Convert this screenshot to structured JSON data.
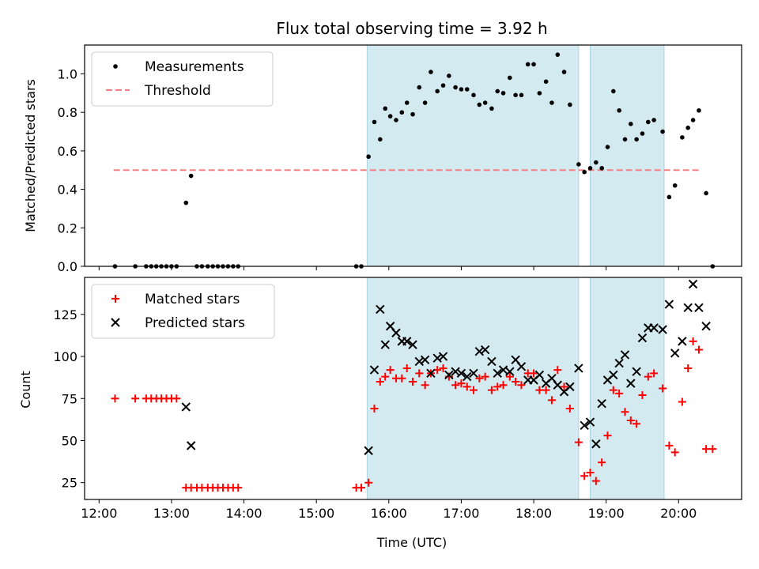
{
  "chart_data": [
    {
      "type": "scatter",
      "title": "Flux total observing time = 3.92 h",
      "xlabel": "",
      "ylabel": "Matched/Predicted stars",
      "x_unit": "hours UTC",
      "xlim": [
        11.8,
        20.87
      ],
      "ylim": [
        0,
        1.15
      ],
      "x_tick_labels": [
        "12:00",
        "13:00",
        "14:00",
        "15:00",
        "16:00",
        "17:00",
        "18:00",
        "19:00",
        "20:00"
      ],
      "y_ticks": [
        0.0,
        0.2,
        0.4,
        0.6,
        0.8,
        1.0
      ],
      "y_tick_labels": [
        "0.0",
        "0.2",
        "0.4",
        "0.6",
        "0.8",
        "1.0"
      ],
      "shaded_intervals": [
        [
          15.7,
          18.62
        ],
        [
          18.78,
          19.8
        ]
      ],
      "shade_color": "#d3eaf0",
      "threshold": {
        "name": "Threshold",
        "value": 0.5,
        "x_range": [
          12.2,
          20.3
        ],
        "color": "#f28080"
      },
      "legend_position": "top-left",
      "series": [
        {
          "name": "Measurements",
          "color": "#000000",
          "points": [
            [
              12.22,
              0.0
            ],
            [
              12.5,
              0.0
            ],
            [
              12.65,
              0.0
            ],
            [
              12.72,
              0.0
            ],
            [
              12.79,
              0.0
            ],
            [
              12.86,
              0.0
            ],
            [
              12.93,
              0.0
            ],
            [
              13.0,
              0.0
            ],
            [
              13.07,
              0.0
            ],
            [
              13.2,
              0.33
            ],
            [
              13.27,
              0.47
            ],
            [
              13.35,
              0.0
            ],
            [
              13.42,
              0.0
            ],
            [
              13.5,
              0.0
            ],
            [
              13.57,
              0.0
            ],
            [
              13.64,
              0.0
            ],
            [
              13.71,
              0.0
            ],
            [
              13.78,
              0.0
            ],
            [
              13.85,
              0.0
            ],
            [
              13.92,
              0.0
            ],
            [
              15.55,
              0.0
            ],
            [
              15.62,
              0.0
            ],
            [
              15.72,
              0.57
            ],
            [
              15.8,
              0.75
            ],
            [
              15.88,
              0.66
            ],
            [
              15.95,
              0.82
            ],
            [
              16.02,
              0.78
            ],
            [
              16.1,
              0.76
            ],
            [
              16.18,
              0.8
            ],
            [
              16.25,
              0.85
            ],
            [
              16.33,
              0.79
            ],
            [
              16.42,
              0.93
            ],
            [
              16.5,
              0.85
            ],
            [
              16.58,
              1.01
            ],
            [
              16.67,
              0.91
            ],
            [
              16.75,
              0.94
            ],
            [
              16.83,
              0.99
            ],
            [
              16.92,
              0.93
            ],
            [
              17.0,
              0.92
            ],
            [
              17.08,
              0.92
            ],
            [
              17.17,
              0.89
            ],
            [
              17.25,
              0.84
            ],
            [
              17.33,
              0.85
            ],
            [
              17.42,
              0.82
            ],
            [
              17.5,
              0.91
            ],
            [
              17.58,
              0.9
            ],
            [
              17.67,
              0.98
            ],
            [
              17.75,
              0.89
            ],
            [
              17.83,
              0.89
            ],
            [
              17.92,
              1.05
            ],
            [
              18.0,
              1.05
            ],
            [
              18.08,
              0.9
            ],
            [
              18.17,
              0.96
            ],
            [
              18.25,
              0.85
            ],
            [
              18.33,
              1.1
            ],
            [
              18.42,
              1.01
            ],
            [
              18.5,
              0.84
            ],
            [
              18.62,
              0.53
            ],
            [
              18.7,
              0.49
            ],
            [
              18.78,
              0.51
            ],
            [
              18.86,
              0.54
            ],
            [
              18.94,
              0.51
            ],
            [
              19.02,
              0.62
            ],
            [
              19.1,
              0.91
            ],
            [
              19.18,
              0.81
            ],
            [
              19.26,
              0.66
            ],
            [
              19.34,
              0.74
            ],
            [
              19.42,
              0.66
            ],
            [
              19.5,
              0.69
            ],
            [
              19.58,
              0.75
            ],
            [
              19.66,
              0.76
            ],
            [
              19.78,
              0.7
            ],
            [
              19.87,
              0.36
            ],
            [
              19.95,
              0.42
            ],
            [
              20.05,
              0.67
            ],
            [
              20.13,
              0.72
            ],
            [
              20.2,
              0.76
            ],
            [
              20.28,
              0.81
            ],
            [
              20.38,
              0.38
            ],
            [
              20.47,
              0.0
            ]
          ]
        }
      ]
    },
    {
      "type": "scatter",
      "title": "",
      "xlabel": "Time (UTC)",
      "ylabel": "Count",
      "x_unit": "hours UTC",
      "xlim": [
        11.8,
        20.87
      ],
      "ylim": [
        15,
        147
      ],
      "x_ticks": [
        12,
        13,
        14,
        15,
        16,
        17,
        18,
        19,
        20
      ],
      "x_tick_labels": [
        "12:00",
        "13:00",
        "14:00",
        "15:00",
        "16:00",
        "17:00",
        "18:00",
        "19:00",
        "20:00"
      ],
      "y_ticks": [
        25,
        50,
        75,
        100,
        125
      ],
      "y_tick_labels": [
        "25",
        "50",
        "75",
        "100",
        "125"
      ],
      "shaded_intervals": [
        [
          15.7,
          18.62
        ],
        [
          18.78,
          19.8
        ]
      ],
      "shade_color": "#d3eaf0",
      "legend_position": "top-left",
      "series": [
        {
          "name": "Matched stars",
          "color": "#ff0000",
          "marker": "plus",
          "points": [
            [
              12.22,
              75
            ],
            [
              12.5,
              75
            ],
            [
              12.65,
              75
            ],
            [
              12.72,
              75
            ],
            [
              12.79,
              75
            ],
            [
              12.86,
              75
            ],
            [
              12.93,
              75
            ],
            [
              13.0,
              75
            ],
            [
              13.07,
              75
            ],
            [
              13.2,
              22
            ],
            [
              13.27,
              22
            ],
            [
              13.35,
              22
            ],
            [
              13.42,
              22
            ],
            [
              13.5,
              22
            ],
            [
              13.57,
              22
            ],
            [
              13.64,
              22
            ],
            [
              13.71,
              22
            ],
            [
              13.78,
              22
            ],
            [
              13.85,
              22
            ],
            [
              13.92,
              22
            ],
            [
              15.55,
              22
            ],
            [
              15.62,
              22
            ],
            [
              15.72,
              25
            ],
            [
              15.8,
              69
            ],
            [
              15.88,
              85
            ],
            [
              15.95,
              88
            ],
            [
              16.02,
              92
            ],
            [
              16.1,
              87
            ],
            [
              16.18,
              87
            ],
            [
              16.25,
              93
            ],
            [
              16.33,
              85
            ],
            [
              16.42,
              90
            ],
            [
              16.5,
              83
            ],
            [
              16.58,
              90
            ],
            [
              16.67,
              92
            ],
            [
              16.75,
              93
            ],
            [
              16.83,
              88
            ],
            [
              16.92,
              83
            ],
            [
              17.0,
              84
            ],
            [
              17.08,
              82
            ],
            [
              17.17,
              80
            ],
            [
              17.25,
              87
            ],
            [
              17.33,
              88
            ],
            [
              17.42,
              80
            ],
            [
              17.5,
              82
            ],
            [
              17.58,
              83
            ],
            [
              17.67,
              88
            ],
            [
              17.75,
              85
            ],
            [
              17.83,
              83
            ],
            [
              17.92,
              90
            ],
            [
              18.0,
              90
            ],
            [
              18.08,
              80
            ],
            [
              18.17,
              80
            ],
            [
              18.25,
              74
            ],
            [
              18.33,
              92
            ],
            [
              18.42,
              82
            ],
            [
              18.5,
              69
            ],
            [
              18.62,
              49
            ],
            [
              18.7,
              29
            ],
            [
              18.78,
              31
            ],
            [
              18.86,
              26
            ],
            [
              18.94,
              37
            ],
            [
              19.02,
              53
            ],
            [
              19.1,
              80
            ],
            [
              19.18,
              78
            ],
            [
              19.26,
              67
            ],
            [
              19.34,
              62
            ],
            [
              19.42,
              60
            ],
            [
              19.5,
              77
            ],
            [
              19.58,
              88
            ],
            [
              19.66,
              90
            ],
            [
              19.78,
              81
            ],
            [
              19.87,
              47
            ],
            [
              19.95,
              43
            ],
            [
              20.05,
              73
            ],
            [
              20.13,
              93
            ],
            [
              20.2,
              109
            ],
            [
              20.28,
              104
            ],
            [
              20.38,
              45
            ],
            [
              20.47,
              45
            ]
          ]
        },
        {
          "name": "Predicted stars",
          "color": "#000000",
          "marker": "x",
          "points": [
            [
              13.2,
              70
            ],
            [
              13.27,
              47
            ],
            [
              15.72,
              44
            ],
            [
              15.8,
              92
            ],
            [
              15.88,
              128
            ],
            [
              15.95,
              107
            ],
            [
              16.02,
              118
            ],
            [
              16.1,
              114
            ],
            [
              16.18,
              109
            ],
            [
              16.25,
              109
            ],
            [
              16.33,
              107
            ],
            [
              16.42,
              97
            ],
            [
              16.5,
              98
            ],
            [
              16.58,
              90
            ],
            [
              16.67,
              99
            ],
            [
              16.75,
              100
            ],
            [
              16.83,
              89
            ],
            [
              16.92,
              91
            ],
            [
              17.0,
              90
            ],
            [
              17.08,
              88
            ],
            [
              17.17,
              90
            ],
            [
              17.25,
              103
            ],
            [
              17.33,
              104
            ],
            [
              17.42,
              97
            ],
            [
              17.5,
              90
            ],
            [
              17.58,
              92
            ],
            [
              17.67,
              91
            ],
            [
              17.75,
              98
            ],
            [
              17.83,
              94
            ],
            [
              17.92,
              86
            ],
            [
              18.0,
              86
            ],
            [
              18.08,
              89
            ],
            [
              18.17,
              84
            ],
            [
              18.25,
              87
            ],
            [
              18.33,
              83
            ],
            [
              18.42,
              79
            ],
            [
              18.5,
              82
            ],
            [
              18.62,
              93
            ],
            [
              18.7,
              59
            ],
            [
              18.78,
              61
            ],
            [
              18.86,
              48
            ],
            [
              18.94,
              72
            ],
            [
              19.02,
              86
            ],
            [
              19.1,
              89
            ],
            [
              19.18,
              96
            ],
            [
              19.26,
              101
            ],
            [
              19.34,
              84
            ],
            [
              19.42,
              91
            ],
            [
              19.5,
              111
            ],
            [
              19.58,
              117
            ],
            [
              19.66,
              117
            ],
            [
              19.78,
              116
            ],
            [
              19.87,
              131
            ],
            [
              19.95,
              102
            ],
            [
              20.05,
              109
            ],
            [
              20.13,
              129
            ],
            [
              20.2,
              143
            ],
            [
              20.28,
              129
            ],
            [
              20.38,
              118
            ]
          ]
        }
      ]
    }
  ]
}
